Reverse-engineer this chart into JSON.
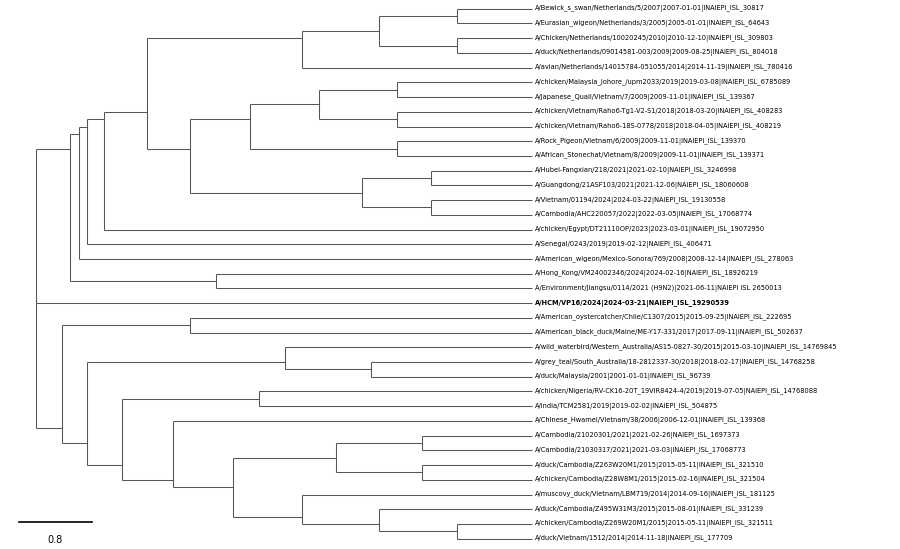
{
  "title": "",
  "scale_bar_value": 0.8,
  "scale_bar_label": "0.8",
  "bold_taxa": [
    "A/HCM/VP16/2024|2024-03-21|NAIEPI_ISL_19290539"
  ],
  "taxa": [
    "A/Bewick_s_swan/Netherlands/5/2007|2007-01-01|INAIEPI_ISL_30817",
    "A/Eurasian_wigeon/Netherlands/3/2005|2005-01-01|INAIEPI_ISL_64643",
    "A/Chicken/Netherlands/10020245/2010|2010-12-10|INAIEPI_ISL_309803",
    "A/duck/Netherlands/09014581-003/2009|2009-08-25|INAIEPI_ISL_804018",
    "A/avian/Netherlands/14015784-051055/2014|2014-11-19|INAIEPI_ISL_780416",
    "A/chicken/Malaysia_Johore_/upm2033/2019|2019-03-08|INAIEPI_ISL_6785089",
    "A/Japanese_Quail/Vietnam/7/2009|2009-11-01|INAIEPI_ISL_139367",
    "A/chicken/Vietnam/Raho6-Tg1-V2-S1/2018|2018-03-20|INAIEPI_ISL_408283",
    "A/chicken/Vietnam/Raho6-18S-0778/2018|2018-04-05|INAIEPI_ISL_408219",
    "A/Rock_Pigeon/Vietnam/6/2009|2009-11-01|INAIEPI_ISL_139370",
    "A/African_Stonechat/Vietnam/8/2009|2009-11-01|INAIEPI_ISL_139371",
    "A/Hubei-Fangxian/218/2021|2021-02-10|NAIEPI_ISL_3246998",
    "A/Guangdong/21ASF103/2021|2021-12-06|NAIEPI_ISL_18060608",
    "A/Vietnam/01194/2024|2024-03-22|NAIEPI_ISL_19130558",
    "A/Cambodia/AHC220057/2022|2022-03-05|INAIEPI_ISL_17068774",
    "A/chicken/Egypt/DT21110OP/2023|2023-03-01|INAIEPI_ISL_19072950",
    "A/Senegal/0243/2019|2019-02-12|NAIEPI_ISL_406471",
    "A/American_wigeon/Mexico-Sonora/769/2008|2008-12-14|INAIEPI_ISL_278063",
    "A/Hong_Kong/VM24002346/2024|2024-02-16|NAIEPI_ISL_18926219",
    "A/Environment/Jiangsu/0114/2021 (H9N2)|2021-06-11|NAIEPI ISL 2650013",
    "A/HCM/VP16/2024|2024-03-21|NAIEPI_ISL_19290539",
    "A/American_oystercatcher/Chile/C1307/2015|2015-09-25|INAIEPI_ISL_222695",
    "A/American_black_duck/Maine/ME-Y17-331/2017|2017-09-11|INAIEPI_ISL_502637",
    "A/wild_waterbird/Western_Australia/AS15-0827-30/2015|2015-03-10|INAIEPI_ISL_14769845",
    "A/grey_teal/South_Australia/18-2812337-30/2018|2018-02-17|INAIEPI_ISL_14768258",
    "A/duck/Malaysia/2001|2001-01-01|INAIEPI_ISL_96739",
    "A/chicken/Nigeria/RV-CK16-20T_19VIR8424-4/2019|2019-07-05|NAIEPI_ISL_14768088",
    "A/India/TCM2581/2019|2019-02-02|INAIEPI_ISL_504875",
    "A/Chinese_Hwamei/Vietnam/38/2006|2006-12-01|INAIEPI_ISL_139368",
    "A/Cambodia/21020301/2021|2021-02-26|NAIEPI_ISL_1697373",
    "A/Cambodia/21030317/2021|2021-03-03|INAIEPI_ISL_17068773",
    "A/duck/Cambodia/Z263W20M1/2015|2015-05-11|INAIEPI_ISL_321510",
    "A/chicken/Cambodia/Z28W8M1/2015|2015-02-16|INAIEPI_ISL_321504",
    "A/muscovy_duck/Vietnam/LBM719/2014|2014-09-16|INAIEPI_ISL_181125",
    "A/duck/Cambodia/Z495W31M3/2015|2015-08-01|INAIEPI_ISL_331239",
    "A/chicken/Cambodia/Z269W20M1/2015|2015-05-11|INAIEPI_ISL_321511",
    "A/duck/Vietnam/1512/2014|2014-11-18|INAIEPI_ISL_177709"
  ],
  "background_color": "#ffffff",
  "line_color": "#555555",
  "text_color": "#000000",
  "fontsize": 5.2,
  "bold_fontsize": 5.2
}
